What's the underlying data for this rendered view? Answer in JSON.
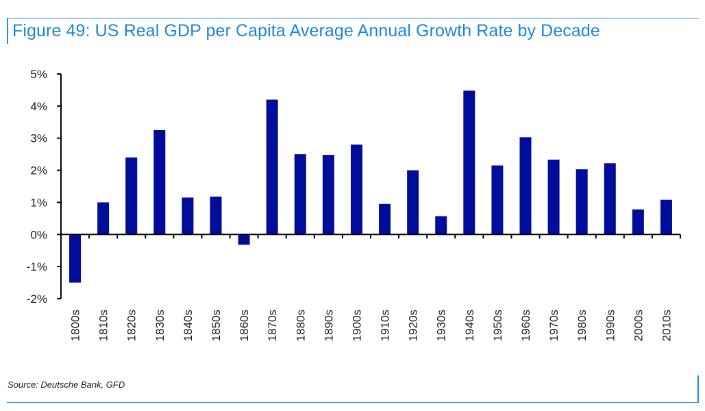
{
  "title": "Figure 49: US Real GDP per Capita Average Annual Growth Rate by Decade",
  "source": "Source: Deutsche Bank, GFD",
  "colors": {
    "bar": "#000c9a",
    "title": "#1b86d8",
    "frame": "#1f8fe0",
    "axis": "#000000"
  },
  "chart_data": {
    "type": "bar",
    "title": "Figure 49: US Real GDP per Capita Average Annual Growth Rate by Decade",
    "xlabel": "",
    "ylabel": "",
    "ylim": [
      -2,
      5
    ],
    "ytick_values": [
      -2,
      -1,
      0,
      1,
      2,
      3,
      4,
      5
    ],
    "ytick_labels": [
      "-2%",
      "-1%",
      "0%",
      "1%",
      "2%",
      "3%",
      "4%",
      "5%"
    ],
    "grid": false,
    "legend": "none",
    "categories": [
      "1800s",
      "1810s",
      "1820s",
      "1830s",
      "1840s",
      "1850s",
      "1860s",
      "1870s",
      "1880s",
      "1890s",
      "1900s",
      "1910s",
      "1920s",
      "1930s",
      "1940s",
      "1950s",
      "1960s",
      "1970s",
      "1980s",
      "1990s",
      "2000s",
      "2010s"
    ],
    "values": [
      -1.5,
      1.0,
      2.4,
      3.25,
      1.15,
      1.18,
      -0.32,
      4.2,
      2.5,
      2.48,
      2.8,
      0.95,
      2.0,
      0.57,
      4.48,
      2.15,
      3.03,
      2.33,
      2.03,
      2.22,
      0.78,
      1.08
    ],
    "units": "%"
  }
}
